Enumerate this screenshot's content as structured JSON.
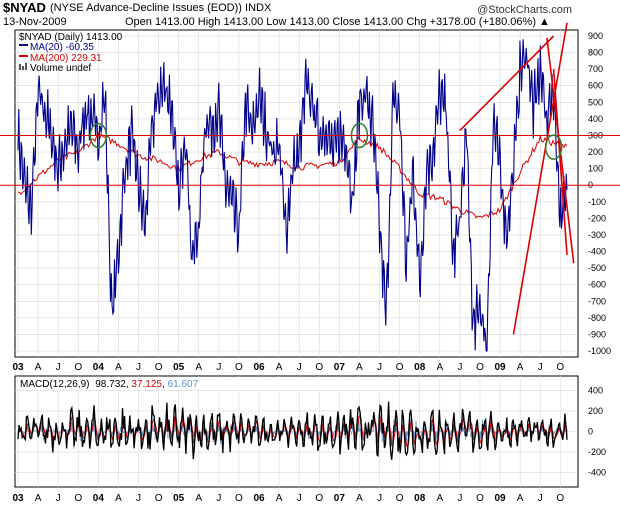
{
  "header": {
    "symbol": "$NYAD",
    "description": "(NYSE Advance-Decline Issues (EOD)) INDX",
    "date": "13-Nov-2009",
    "ohlc": "Open 1413.00  High 1413.00  Low 1413.00  Close 1413.00  Chg +3178.00 (+180.06%) ▲",
    "copyright": "@StockCharts.com"
  },
  "legend": {
    "main": "$NYAD (Daily) 1413.00",
    "ma20": "MA(20) -60.35",
    "ma200": "MA(200) 229.31",
    "volume": "Volume undef"
  },
  "macd_label": {
    "prefix": "MACD(12,26,9)",
    "macd": "98.732",
    "signal": "37.125",
    "hist": "61.607"
  },
  "colors": {
    "ma20": "#00008b",
    "ma200": "#dd0000",
    "trendline": "#dd0000",
    "circle": "#2e7d32",
    "macd": "#000000",
    "signal": "#dd0000",
    "histogram": "#5b8fc9",
    "grid": "#d8d8d8"
  },
  "chart_data": [
    {
      "type": "line",
      "title": "$NYAD (NYSE Advance-Decline Issues (EOD)) INDX",
      "ylim": [
        -1000,
        900
      ],
      "y_ticks": [
        900,
        800,
        700,
        600,
        500,
        400,
        300,
        200,
        100,
        0,
        -100,
        -200,
        -300,
        -400,
        -500,
        -600,
        -700,
        -800,
        -900,
        -1000
      ],
      "x_range": [
        "2003-01",
        "2009-11"
      ],
      "x_ticks": [
        "03",
        "A",
        "J",
        "O",
        "04",
        "A",
        "J",
        "O",
        "05",
        "A",
        "J",
        "O",
        "06",
        "A",
        "J",
        "O",
        "07",
        "A",
        "J",
        "O",
        "08",
        "A",
        "J",
        "O",
        "09",
        "A",
        "J",
        "O"
      ],
      "grid": true,
      "series": [
        {
          "name": "MA(20)",
          "x": [
            "2003-01",
            "2003-02",
            "2003-03",
            "2003-04",
            "2003-05",
            "2003-06",
            "2003-07",
            "2003-08",
            "2003-09",
            "2003-10",
            "2003-11",
            "2003-12",
            "2004-01",
            "2004-02",
            "2004-03",
            "2004-04",
            "2004-05",
            "2004-06",
            "2004-07",
            "2004-08",
            "2004-09",
            "2004-10",
            "2004-11",
            "2004-12",
            "2005-01",
            "2005-02",
            "2005-03",
            "2005-04",
            "2005-05",
            "2005-06",
            "2005-07",
            "2005-08",
            "2005-09",
            "2005-10",
            "2005-11",
            "2005-12",
            "2006-01",
            "2006-02",
            "2006-03",
            "2006-04",
            "2006-05",
            "2006-06",
            "2006-07",
            "2006-08",
            "2006-09",
            "2006-10",
            "2006-11",
            "2006-12",
            "2007-01",
            "2007-02",
            "2007-03",
            "2007-04",
            "2007-05",
            "2007-06",
            "2007-07",
            "2007-08",
            "2007-09",
            "2007-10",
            "2007-11",
            "2007-12",
            "2008-01",
            "2008-02",
            "2008-03",
            "2008-04",
            "2008-05",
            "2008-06",
            "2008-07",
            "2008-08",
            "2008-09",
            "2008-10",
            "2008-11",
            "2008-12",
            "2009-01",
            "2009-02",
            "2009-03",
            "2009-04",
            "2009-05",
            "2009-06",
            "2009-07",
            "2009-08",
            "2009-09",
            "2009-10",
            "2009-11"
          ],
          "values": [
            300,
            0,
            -150,
            550,
            450,
            300,
            100,
            250,
            350,
            200,
            450,
            400,
            300,
            550,
            -800,
            -400,
            100,
            300,
            0,
            -250,
            350,
            550,
            600,
            450,
            -100,
            350,
            -450,
            -250,
            400,
            350,
            450,
            0,
            -100,
            -300,
            500,
            300,
            550,
            350,
            200,
            250,
            -300,
            100,
            200,
            600,
            500,
            300,
            350,
            200,
            300,
            250,
            -100,
            500,
            550,
            350,
            -250,
            -800,
            500,
            450,
            -500,
            100,
            -600,
            100,
            200,
            550,
            450,
            -450,
            -200,
            300,
            -900,
            -700,
            -1000,
            400,
            100,
            -300,
            100,
            700,
            800,
            450,
            700,
            400,
            600,
            -200,
            -60
          ]
        },
        {
          "name": "MA(200)",
          "x": [
            "2003-01",
            "2003-04",
            "2003-07",
            "2003-10",
            "2004-01",
            "2004-04",
            "2004-07",
            "2004-10",
            "2005-01",
            "2005-04",
            "2005-07",
            "2005-10",
            "2006-01",
            "2006-04",
            "2006-07",
            "2006-10",
            "2007-01",
            "2007-04",
            "2007-07",
            "2007-10",
            "2008-01",
            "2008-04",
            "2008-07",
            "2008-10",
            "2009-01",
            "2009-04",
            "2009-07",
            "2009-11"
          ],
          "values": [
            -50,
            50,
            150,
            200,
            300,
            250,
            180,
            150,
            100,
            160,
            200,
            140,
            130,
            140,
            110,
            120,
            140,
            280,
            230,
            100,
            -50,
            -80,
            -150,
            -200,
            -150,
            80,
            280,
            229
          ]
        }
      ],
      "hlines": [
        300,
        0
      ],
      "annotations": [
        "circles at 2004-01, 2007-04 and 2009-09 near 300",
        "trendlines from the 2009-03 low and toward the 2009-10 peak"
      ]
    },
    {
      "type": "line",
      "title": "MACD(12,26,9) 98.732, 37.125, 61.607",
      "ylim": [
        -500,
        500
      ],
      "y_ticks": [
        400,
        200,
        0,
        -200,
        -400
      ],
      "x_range": [
        "2003-01",
        "2009-11"
      ],
      "x_ticks": [
        "03",
        "A",
        "J",
        "O",
        "04",
        "A",
        "J",
        "O",
        "05",
        "A",
        "J",
        "O",
        "06",
        "A",
        "J",
        "O",
        "07",
        "A",
        "J",
        "O",
        "08",
        "A",
        "J",
        "O",
        "09",
        "A",
        "J",
        "O"
      ],
      "grid": true,
      "series": [
        {
          "name": "MACD",
          "amplitude": 250
        },
        {
          "name": "signal",
          "amplitude": 150
        },
        {
          "name": "histogram",
          "amplitude": 120
        }
      ]
    }
  ]
}
